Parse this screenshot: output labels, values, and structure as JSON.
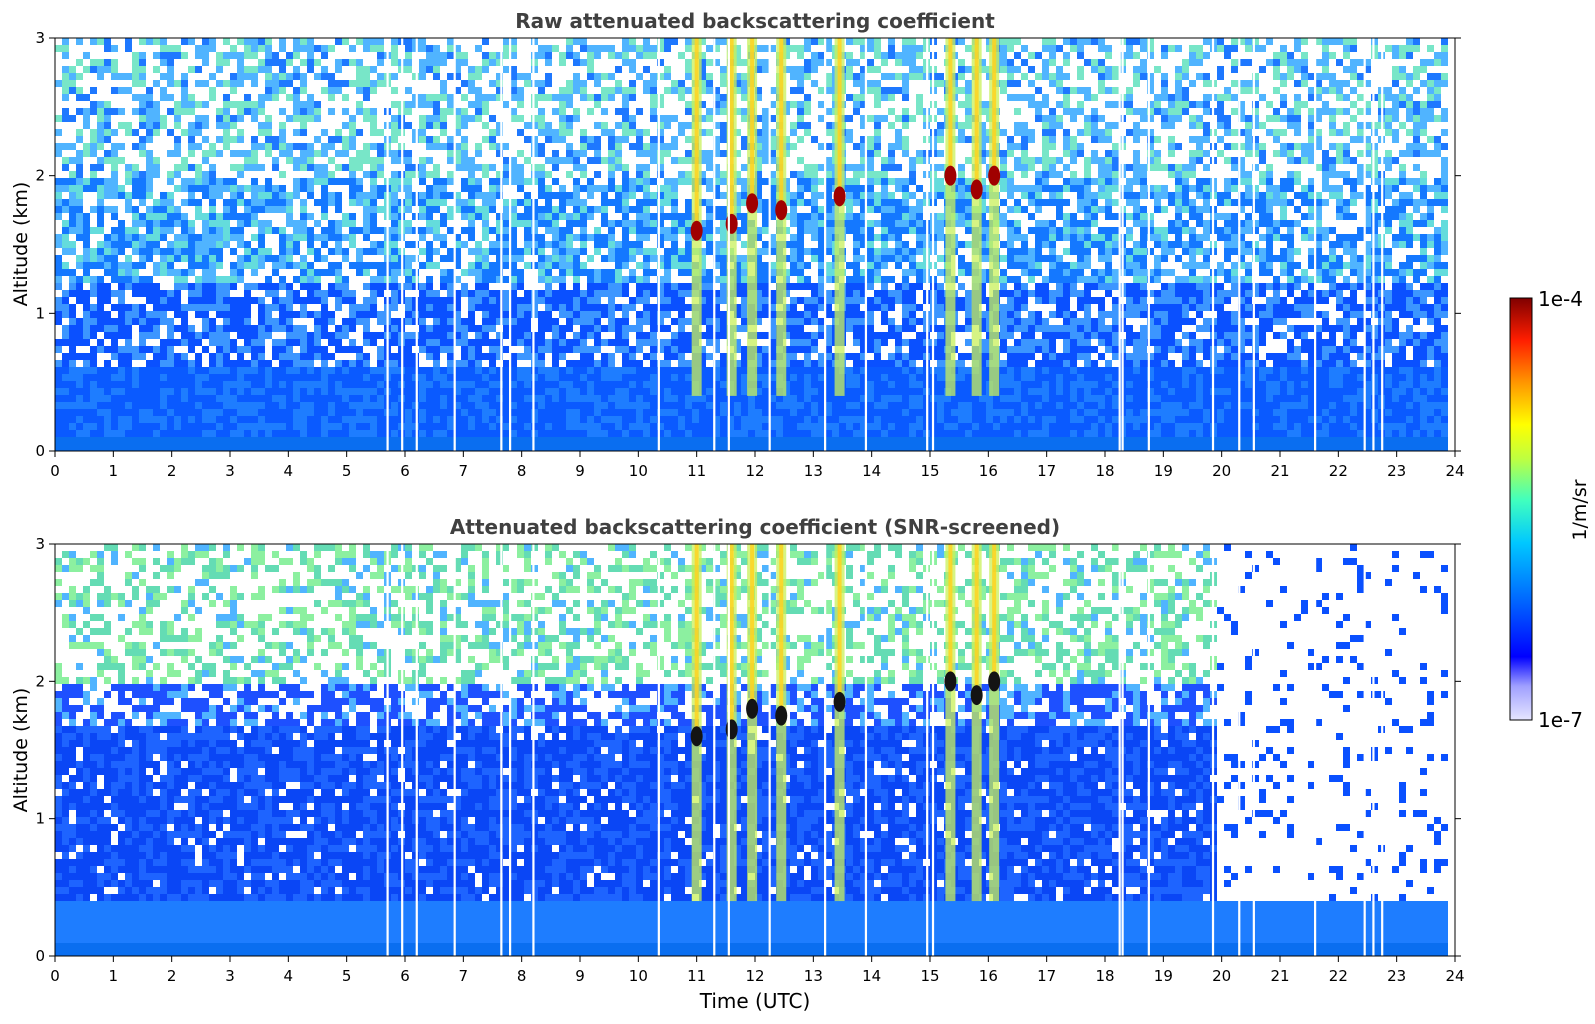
{
  "chart_data": [
    {
      "type": "heatmap",
      "title": "Raw attenuated backscattering coefficient",
      "xlabel": "",
      "ylabel": "Altitude (km)",
      "xlim": [
        0,
        24
      ],
      "ylim": [
        0,
        3
      ],
      "x_ticks": [
        "0",
        "1",
        "2",
        "3",
        "4",
        "5",
        "6",
        "7",
        "8",
        "9",
        "10",
        "11",
        "12",
        "13",
        "14",
        "15",
        "16",
        "17",
        "18",
        "19",
        "20",
        "21",
        "22",
        "23",
        "24"
      ],
      "y_ticks": [
        "0",
        "1",
        "2",
        "3"
      ],
      "cloud_features": [
        {
          "time": 11.0,
          "altitude": 1.6
        },
        {
          "time": 11.6,
          "altitude": 1.65
        },
        {
          "time": 11.95,
          "altitude": 1.8
        },
        {
          "time": 12.45,
          "altitude": 1.75
        },
        {
          "time": 13.45,
          "altitude": 1.85
        },
        {
          "time": 15.35,
          "altitude": 2.0
        },
        {
          "time": 15.8,
          "altitude": 1.9
        },
        {
          "time": 16.1,
          "altitude": 2.0
        }
      ],
      "missing_data_times": [
        5.7,
        5.95,
        6.2,
        6.85,
        7.65,
        7.8,
        8.2,
        10.35,
        11.3,
        11.55,
        12.25,
        13.2,
        13.9,
        14.95,
        15.05,
        18.25,
        18.3,
        18.75,
        19.85,
        20.3,
        20.55,
        21.6,
        22.45,
        22.6,
        22.75
      ]
    },
    {
      "type": "heatmap",
      "title": "Attenuated backscattering coefficient (SNR-screened)",
      "xlabel": "Time (UTC)",
      "ylabel": "Altitude (km)",
      "xlim": [
        0,
        24
      ],
      "ylim": [
        0,
        3
      ],
      "x_ticks": [
        "0",
        "1",
        "2",
        "3",
        "4",
        "5",
        "6",
        "7",
        "8",
        "9",
        "10",
        "11",
        "12",
        "13",
        "14",
        "15",
        "16",
        "17",
        "18",
        "19",
        "20",
        "21",
        "22",
        "23",
        "24"
      ],
      "y_ticks": [
        "0",
        "1",
        "2",
        "3"
      ],
      "screened_top_km": 1.7,
      "cloud_features": [
        {
          "time": 11.0,
          "altitude": 1.6
        },
        {
          "time": 11.6,
          "altitude": 1.65
        },
        {
          "time": 11.95,
          "altitude": 1.8
        },
        {
          "time": 12.45,
          "altitude": 1.75
        },
        {
          "time": 13.45,
          "altitude": 1.85
        },
        {
          "time": 15.35,
          "altitude": 2.0
        },
        {
          "time": 15.8,
          "altitude": 1.9
        },
        {
          "time": 16.1,
          "altitude": 2.0
        }
      ]
    }
  ],
  "colorbar": {
    "label": "1/m/sr",
    "min_label": "1e-7",
    "max_label": "1e-4",
    "scale": "log",
    "colors": [
      "#e6e6ff",
      "#a0a0ff",
      "#0000ff",
      "#0064ff",
      "#00c8ff",
      "#40ffbf",
      "#bfff40",
      "#ffff00",
      "#ff9600",
      "#ff1e00",
      "#800000"
    ]
  }
}
